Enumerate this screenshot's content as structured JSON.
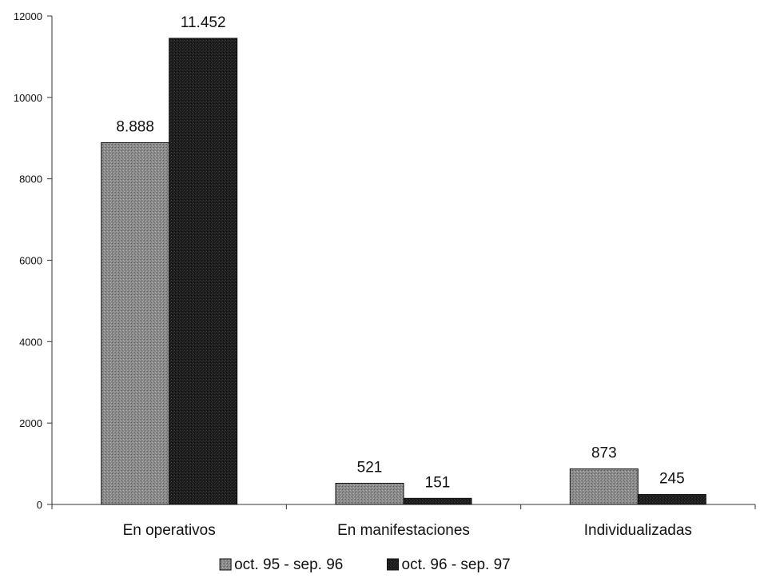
{
  "chart_data": {
    "type": "bar",
    "categories": [
      "En operativos",
      "En manifestaciones",
      "Individualizadas"
    ],
    "series": [
      {
        "name": "oct. 95 - sep. 96",
        "values": [
          8888,
          521,
          873
        ],
        "labels": [
          "8.888",
          "521",
          "873"
        ],
        "color": "#8c8c8c"
      },
      {
        "name": "oct. 96 - sep. 97",
        "values": [
          11452,
          151,
          245
        ],
        "labels": [
          "11.452",
          "151",
          "245"
        ],
        "color": "#1c1c1c"
      }
    ],
    "y_ticks": [
      "0",
      "2000",
      "4000",
      "6000",
      "8000",
      "10000",
      "12000"
    ],
    "ylim": [
      0,
      12000
    ],
    "grid": false,
    "legend_position": "bottom-center"
  }
}
